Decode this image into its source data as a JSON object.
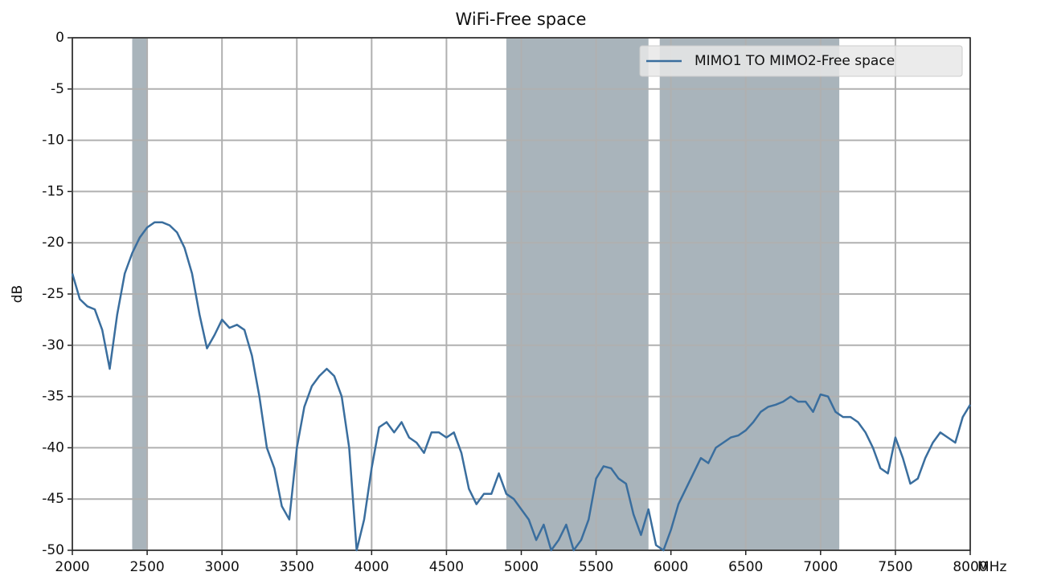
{
  "chart_data": {
    "type": "line",
    "title": "WiFi-Free space",
    "ylabel": "dB",
    "xlabel": "MHz",
    "x": [
      2000,
      2050,
      2100,
      2150,
      2200,
      2250,
      2300,
      2350,
      2400,
      2450,
      2500,
      2550,
      2600,
      2650,
      2700,
      2750,
      2800,
      2850,
      2900,
      2950,
      3000,
      3050,
      3100,
      3150,
      3200,
      3250,
      3300,
      3350,
      3400,
      3450,
      3500,
      3550,
      3600,
      3650,
      3700,
      3750,
      3800,
      3850,
      3900,
      3950,
      4000,
      4050,
      4100,
      4150,
      4200,
      4250,
      4300,
      4350,
      4400,
      4450,
      4500,
      4550,
      4600,
      4650,
      4700,
      4750,
      4800,
      4850,
      4900,
      4950,
      5000,
      5050,
      5100,
      5150,
      5200,
      5250,
      5300,
      5350,
      5400,
      5450,
      5500,
      5550,
      5600,
      5650,
      5700,
      5750,
      5800,
      5850,
      5900,
      5950,
      6000,
      6050,
      6100,
      6150,
      6200,
      6250,
      6300,
      6350,
      6400,
      6450,
      6500,
      6550,
      6600,
      6650,
      6700,
      6750,
      6800,
      6850,
      6900,
      6950,
      7000,
      7050,
      7100,
      7150,
      7200,
      7250,
      7300,
      7350,
      7400,
      7450,
      7500,
      7550,
      7600,
      7650,
      7700,
      7750,
      7800,
      7850,
      7900,
      7950,
      8000
    ],
    "series": [
      {
        "name": "MIMO1 TO MIMO2-Free space",
        "color": "#3a6e9e",
        "values": [
          -23,
          -25.5,
          -26.2,
          -26.5,
          -28.5,
          -32.3,
          -27,
          -23,
          -21,
          -19.5,
          -18.5,
          -18,
          -18,
          -18.3,
          -19,
          -20.5,
          -23,
          -27,
          -30.3,
          -29,
          -27.5,
          -28.3,
          -28,
          -28.5,
          -31,
          -35,
          -40,
          -42,
          -45.7,
          -47,
          -40,
          -36,
          -34,
          -33,
          -32.3,
          -33,
          -35,
          -40,
          -50,
          -47,
          -42,
          -38,
          -37.5,
          -38.5,
          -37.5,
          -39,
          -39.5,
          -40.5,
          -38.5,
          -38.5,
          -39,
          -38.5,
          -40.5,
          -44,
          -45.5,
          -44.5,
          -44.5,
          -42.5,
          -44.5,
          -45,
          -46,
          -47,
          -49,
          -47.5,
          -50,
          -49,
          -47.5,
          -50,
          -49,
          -47,
          -43,
          -41.8,
          -42,
          -43,
          -43.5,
          -46.5,
          -48.5,
          -46,
          -49.5,
          -50,
          -48,
          -45.5,
          -44,
          -42.5,
          -41,
          -41.5,
          -40,
          -39.5,
          -39,
          -38.8,
          -38.3,
          -37.5,
          -36.5,
          -36,
          -35.8,
          -35.5,
          -35,
          -35.5,
          -35.5,
          -36.5,
          -34.8,
          -35,
          -36.5,
          -37,
          -37,
          -37.5,
          -38.5,
          -40,
          -42,
          -42.5,
          -39,
          -41,
          -43.5,
          -43,
          -41,
          -39.5,
          -38.5,
          -39,
          -39.5,
          -37,
          -35.8
        ]
      }
    ],
    "shaded_regions": [
      [
        2400,
        2500
      ],
      [
        4900,
        5850
      ],
      [
        5925,
        7125
      ]
    ],
    "shade_color": "#a9b4bb",
    "xlim": [
      2000,
      8000
    ],
    "ylim": [
      -50,
      0
    ],
    "xticks": [
      2000,
      2500,
      3000,
      3500,
      4000,
      4500,
      5000,
      5500,
      6000,
      6500,
      7000,
      7500,
      8000
    ],
    "yticks": [
      0,
      -5,
      -10,
      -15,
      -20,
      -25,
      -30,
      -35,
      -40,
      -45,
      -50
    ],
    "grid": true,
    "legend": "upper right"
  }
}
